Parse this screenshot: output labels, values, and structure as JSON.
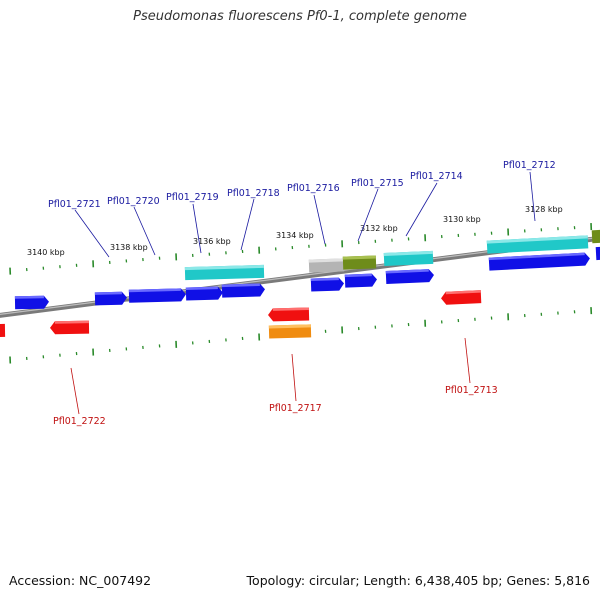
{
  "title": "Pseudomonas fluorescens Pf0-1, complete genome",
  "footer": {
    "accession_label": "Accession:",
    "accession": "NC_007492",
    "topology_label": "Topology:",
    "topology": "circular",
    "length_label": "Length:",
    "length": "6,438,405 bp",
    "genes_label": "Genes:",
    "genes": "5,816"
  },
  "colors": {
    "forward_gene": "#1010e6",
    "reverse_gene": "#f01010",
    "cyan_feature": "#20c8c8",
    "olive_feature": "#6e8c1a",
    "gray_feature": "#b4b4b4",
    "orange_feature": "#f08c10",
    "backbone": "#808080",
    "tick": "#2a8a2a",
    "forward_label": "#1a1aa0",
    "reverse_label": "#c01010"
  },
  "scale_labels": [
    "3140 kbp",
    "3138 kbp",
    "3136 kbp",
    "3134 kbp",
    "3132 kbp",
    "3130 kbp",
    "3128 kbp"
  ],
  "forward_labels": [
    "Pfl01_2721",
    "Pfl01_2720",
    "Pfl01_2719",
    "Pfl01_2718",
    "Pfl01_2716",
    "Pfl01_2715",
    "Pfl01_2714",
    "Pfl01_2712"
  ],
  "reverse_labels": [
    "Pfl01_2722",
    "Pfl01_2717",
    "Pfl01_2713"
  ]
}
